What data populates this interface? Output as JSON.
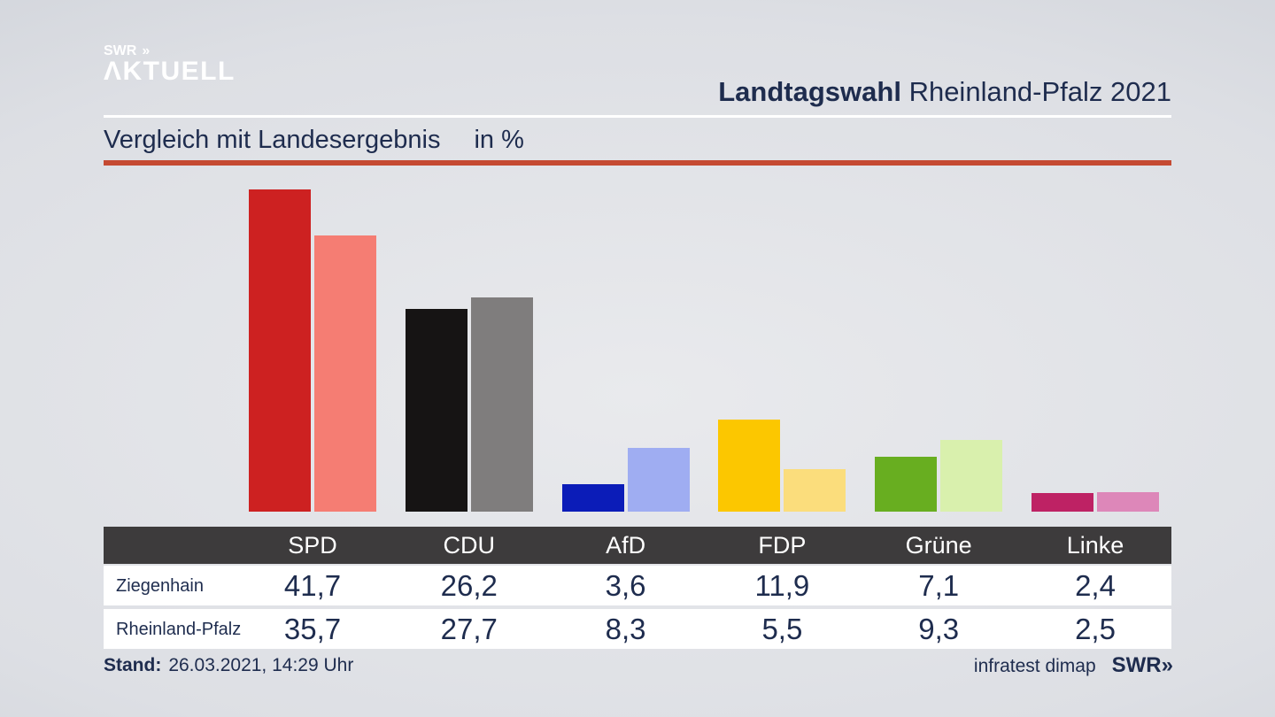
{
  "brand": {
    "line1": "SWR",
    "chevrons": "»",
    "line2": "ΛKTUELL"
  },
  "header": {
    "title_bold": "Landtagswahl",
    "title_rest": " Rheinland-Pfalz 2021"
  },
  "subtitle": {
    "text": "Vergleich mit Landesergebnis",
    "unit": "in %"
  },
  "footer": {
    "stand_label": "Stand:",
    "stand_value": "26.03.2021, 14:29 Uhr",
    "source": "infratest dimap",
    "logo_text": "SWR",
    "logo_chevrons": "»"
  },
  "colors": {
    "navy_text": "#1e2c4e",
    "red_rule": "#c54a32",
    "table_header_bg": "#3d3b3c",
    "table_row_bg": "#ffffff",
    "logo_white": "#ffffff"
  },
  "chart_data": {
    "type": "bar",
    "title": "Vergleich mit Landesergebnis in %",
    "categories": [
      "SPD",
      "CDU",
      "AfD",
      "FDP",
      "Grüne",
      "Linke"
    ],
    "series": [
      {
        "name": "Ziegenhain",
        "values": [
          41.7,
          26.2,
          3.6,
          11.9,
          7.1,
          2.4
        ],
        "colors": [
          "#cd2121",
          "#161414",
          "#0b1cb8",
          "#fcc700",
          "#68ae20",
          "#be2264"
        ]
      },
      {
        "name": "Rheinland-Pfalz",
        "values": [
          35.7,
          27.7,
          8.3,
          5.5,
          9.3,
          2.5
        ],
        "colors": [
          "#f57d73",
          "#7f7d7d",
          "#9fadf2",
          "#fbdd7c",
          "#d9f0ad",
          "#dd87b9"
        ]
      }
    ],
    "unit": "%",
    "decimal_separator": ",",
    "ylim": [
      0,
      44.9
    ],
    "grid": false,
    "legend_position": "table-rows-below-chart"
  }
}
